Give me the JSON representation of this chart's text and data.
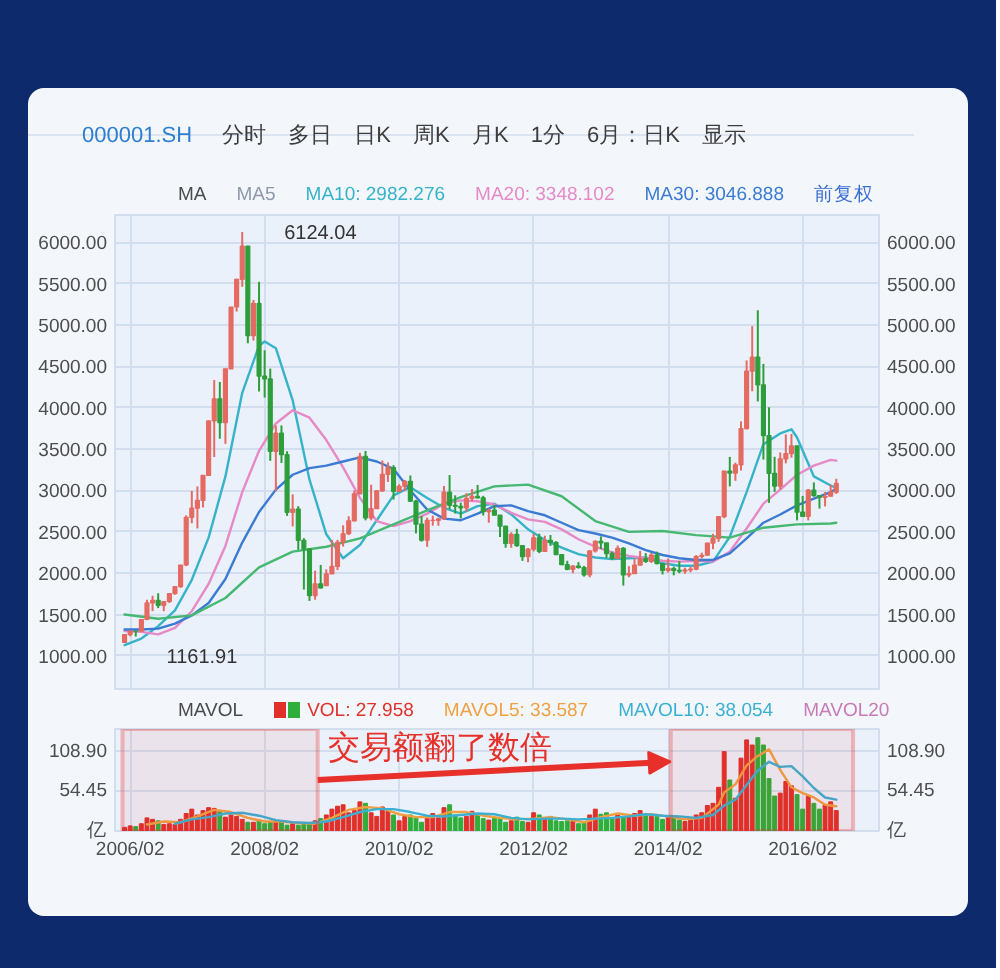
{
  "chart_data": [
    {
      "type": "candlestick",
      "title": "000001.SH",
      "subtitle": "分时 多日 日K 周K 月K 1分 6月：日K 显示",
      "x": [
        "2006-01",
        "2006-02",
        "2006-03",
        "2006-04",
        "2006-05",
        "2006-06",
        "2006-07",
        "2006-08",
        "2006-09",
        "2006-10",
        "2006-11",
        "2006-12",
        "2007-01",
        "2007-02",
        "2007-03",
        "2007-04",
        "2007-05",
        "2007-06",
        "2007-07",
        "2007-08",
        "2007-09",
        "2007-10",
        "2007-11",
        "2007-12",
        "2008-01",
        "2008-02",
        "2008-03",
        "2008-04",
        "2008-05",
        "2008-06",
        "2008-07",
        "2008-08",
        "2008-09",
        "2008-10",
        "2008-11",
        "2008-12",
        "2009-01",
        "2009-02",
        "2009-03",
        "2009-04",
        "2009-05",
        "2009-06",
        "2009-07",
        "2009-08",
        "2009-09",
        "2009-10",
        "2009-11",
        "2009-12",
        "2010-01",
        "2010-02",
        "2010-03",
        "2010-04",
        "2010-05",
        "2010-06",
        "2010-07",
        "2010-08",
        "2010-09",
        "2010-10",
        "2010-11",
        "2010-12",
        "2011-01",
        "2011-02",
        "2011-03",
        "2011-04",
        "2011-05",
        "2011-06",
        "2011-07",
        "2011-08",
        "2011-09",
        "2011-10",
        "2011-11",
        "2011-12",
        "2012-01",
        "2012-02",
        "2012-03",
        "2012-04",
        "2012-05",
        "2012-06",
        "2012-07",
        "2012-08",
        "2012-09",
        "2012-10",
        "2012-11",
        "2012-12",
        "2013-01",
        "2013-02",
        "2013-03",
        "2013-04",
        "2013-05",
        "2013-06",
        "2013-07",
        "2013-08",
        "2013-09",
        "2013-10",
        "2013-11",
        "2013-12",
        "2014-01",
        "2014-02",
        "2014-03",
        "2014-04",
        "2014-05",
        "2014-06",
        "2014-07",
        "2014-08",
        "2014-09",
        "2014-10",
        "2014-11",
        "2014-12",
        "2015-01",
        "2015-02",
        "2015-03",
        "2015-04",
        "2015-05",
        "2015-06",
        "2015-07",
        "2015-08",
        "2015-09",
        "2015-10",
        "2015-11",
        "2015-12",
        "2016-01",
        "2016-02",
        "2016-03",
        "2016-04",
        "2016-05",
        "2016-06",
        "2016-07",
        "2016-08"
      ],
      "ohlc": [
        [
          1163,
          1263,
          1161.91,
          1258
        ],
        [
          1258,
          1306,
          1237,
          1299
        ],
        [
          1299,
          1302,
          1234,
          1298
        ],
        [
          1298,
          1445,
          1298,
          1440
        ],
        [
          1440,
          1679,
          1432,
          1641
        ],
        [
          1641,
          1727,
          1541,
          1672
        ],
        [
          1672,
          1757,
          1578,
          1612
        ],
        [
          1612,
          1658,
          1541,
          1658
        ],
        [
          1658,
          1756,
          1639,
          1752
        ],
        [
          1752,
          1841,
          1740,
          1837
        ],
        [
          1837,
          2100,
          1823,
          2099
        ],
        [
          2099,
          2699,
          2085,
          2675
        ],
        [
          2675,
          2995,
          2604,
          2786
        ],
        [
          2786,
          3049,
          2541,
          2881
        ],
        [
          2881,
          3185,
          2794,
          3183
        ],
        [
          3183,
          3842,
          3174,
          3841
        ],
        [
          3841,
          4335,
          3404,
          4109
        ],
        [
          4109,
          4311,
          3626,
          3820
        ],
        [
          3820,
          4472,
          3563,
          4471
        ],
        [
          4471,
          5218,
          4471,
          5218
        ],
        [
          5218,
          5559,
          5163,
          5552
        ],
        [
          5552,
          6124.04,
          5462,
          5954
        ],
        [
          5954,
          5955,
          4779,
          4871
        ],
        [
          4871,
          5303,
          4812,
          5261
        ],
        [
          5261,
          5522,
          4196,
          4383
        ],
        [
          4383,
          4695,
          4123,
          4348
        ],
        [
          4348,
          4473,
          3358,
          3473
        ],
        [
          3473,
          3786,
          2990,
          3693
        ],
        [
          3693,
          3786,
          3333,
          3433
        ],
        [
          3433,
          3474,
          2693,
          2736
        ],
        [
          2736,
          2953,
          2566,
          2775
        ],
        [
          2775,
          2810,
          2284,
          2397
        ],
        [
          2397,
          2423,
          1802,
          2293
        ],
        [
          2293,
          2298,
          1665,
          1729
        ],
        [
          1729,
          2031,
          1679,
          1871
        ],
        [
          1871,
          2100,
          1814,
          1821
        ],
        [
          1849,
          2046,
          1844,
          1991
        ],
        [
          1991,
          2402,
          1991,
          2082
        ],
        [
          2082,
          2403,
          2037,
          2373
        ],
        [
          2373,
          2579,
          2322,
          2477
        ],
        [
          2477,
          2688,
          2461,
          2633
        ],
        [
          2633,
          2999,
          2627,
          2959
        ],
        [
          2959,
          3455,
          2959,
          3412
        ],
        [
          3412,
          3478,
          2639,
          2667
        ],
        [
          2667,
          3069,
          2639,
          2779
        ],
        [
          2779,
          3005,
          2779,
          2996
        ],
        [
          2996,
          3361,
          2983,
          3195
        ],
        [
          3195,
          3339,
          3104,
          3277
        ],
        [
          3277,
          3306,
          2890,
          2989
        ],
        [
          2989,
          3075,
          2983,
          3051
        ],
        [
          3051,
          3127,
          2994,
          3110
        ],
        [
          3110,
          3181,
          2861,
          2871
        ],
        [
          2871,
          2887,
          2481,
          2592
        ],
        [
          2592,
          2691,
          2382,
          2398
        ],
        [
          2398,
          2672,
          2319,
          2638
        ],
        [
          2638,
          2696,
          2574,
          2639
        ],
        [
          2639,
          2671,
          2573,
          2656
        ],
        [
          2656,
          3055,
          2656,
          2979
        ],
        [
          2979,
          3186,
          2775,
          2820
        ],
        [
          2820,
          2941,
          2721,
          2808
        ],
        [
          2808,
          2853,
          2662,
          2790
        ],
        [
          2790,
          2967,
          2742,
          2905
        ],
        [
          2905,
          3017,
          2869,
          2928
        ],
        [
          2928,
          3067,
          2904,
          2911
        ],
        [
          2911,
          2935,
          2697,
          2743
        ],
        [
          2743,
          2782,
          2610,
          2762
        ],
        [
          2762,
          2826,
          2700,
          2701
        ],
        [
          2701,
          2701,
          2437,
          2568
        ],
        [
          2568,
          2568,
          2308,
          2359
        ],
        [
          2359,
          2494,
          2307,
          2468
        ],
        [
          2468,
          2536,
          2319,
          2333
        ],
        [
          2333,
          2341,
          2149,
          2199
        ],
        [
          2199,
          2302,
          2132,
          2292
        ],
        [
          2292,
          2479,
          2263,
          2428
        ],
        [
          2428,
          2478,
          2242,
          2263
        ],
        [
          2263,
          2453,
          2262,
          2397
        ],
        [
          2397,
          2461,
          2330,
          2373
        ],
        [
          2373,
          2386,
          2225,
          2225
        ],
        [
          2225,
          2232,
          2096,
          2103
        ],
        [
          2103,
          2150,
          2036,
          2047
        ],
        [
          2047,
          2097,
          1999,
          2086
        ],
        [
          2086,
          2134,
          2055,
          2069
        ],
        [
          2069,
          2088,
          1959,
          1980
        ],
        [
          1980,
          2276,
          1950,
          2269
        ],
        [
          2269,
          2398,
          2250,
          2385
        ],
        [
          2385,
          2445,
          2293,
          2366
        ],
        [
          2366,
          2366,
          2185,
          2237
        ],
        [
          2237,
          2261,
          2161,
          2178
        ],
        [
          2178,
          2335,
          2176,
          2301
        ],
        [
          2301,
          2315,
          1850,
          1979
        ],
        [
          1979,
          2084,
          1951,
          1994
        ],
        [
          1994,
          2176,
          1993,
          2098
        ],
        [
          2098,
          2270,
          2098,
          2175
        ],
        [
          2175,
          2243,
          2125,
          2141
        ],
        [
          2141,
          2244,
          2124,
          2220
        ],
        [
          2220,
          2260,
          2108,
          2116
        ],
        [
          2116,
          2117,
          1985,
          2033
        ],
        [
          2033,
          2177,
          2008,
          2056
        ],
        [
          2056,
          2080,
          1974,
          2033
        ],
        [
          2033,
          2147,
          1999,
          2026
        ],
        [
          2026,
          2067,
          1992,
          2039
        ],
        [
          2039,
          2079,
          2010,
          2048
        ],
        [
          2048,
          2219,
          2035,
          2202
        ],
        [
          2202,
          2248,
          2177,
          2217
        ],
        [
          2217,
          2369,
          2211,
          2364
        ],
        [
          2364,
          2476,
          2290,
          2420
        ],
        [
          2420,
          2686,
          2379,
          2683
        ],
        [
          2683,
          3239,
          2665,
          3235
        ],
        [
          3235,
          3406,
          3049,
          3210
        ],
        [
          3210,
          3336,
          3117,
          3310
        ],
        [
          3310,
          3835,
          3242,
          3748
        ],
        [
          3748,
          4572,
          3738,
          4442
        ],
        [
          4442,
          4986,
          4199,
          4612
        ],
        [
          4612,
          5178,
          4076,
          4277
        ],
        [
          4277,
          4530,
          3373,
          3664
        ],
        [
          3664,
          4006,
          2850,
          3206
        ],
        [
          3206,
          3407,
          2983,
          3053
        ],
        [
          3053,
          3459,
          3010,
          3383
        ],
        [
          3383,
          3678,
          3328,
          3445
        ],
        [
          3445,
          3684,
          3396,
          3539
        ],
        [
          3539,
          3539,
          2638,
          2738
        ],
        [
          2738,
          2934,
          2683,
          2688
        ],
        [
          2688,
          3018,
          2638,
          3004
        ],
        [
          3004,
          3097,
          2925,
          2938
        ],
        [
          2938,
          2945,
          2781,
          2917
        ],
        [
          2917,
          2981,
          2807,
          2930
        ],
        [
          2930,
          3070,
          2929,
          2979
        ],
        [
          2979,
          3141,
          2958,
          3085
        ]
      ],
      "colors": [
        "#e46a62",
        "#e46a62",
        "#2d9e3c",
        "#e46a62",
        "#e46a62",
        "#e46a62",
        "#2d9e3c",
        "#e46a62",
        "#e46a62",
        "#e46a62",
        "#e46a62",
        "#e46a62",
        "#e46a62",
        "#e46a62",
        "#e46a62",
        "#e46a62",
        "#e46a62",
        "#2d9e3c",
        "#e46a62",
        "#e46a62",
        "#e46a62",
        "#e46a62",
        "#2d9e3c",
        "#e46a62",
        "#2d9e3c",
        "#2d9e3c",
        "#2d9e3c",
        "#e46a62",
        "#2d9e3c",
        "#2d9e3c",
        "#e46a62",
        "#2d9e3c",
        "#2d9e3c",
        "#2d9e3c",
        "#e46a62",
        "#2d9e3c",
        "#e46a62",
        "#e46a62",
        "#e46a62",
        "#e46a62",
        "#e46a62",
        "#e46a62",
        "#e46a62",
        "#2d9e3c",
        "#e46a62",
        "#e46a62",
        "#e46a62",
        "#e46a62",
        "#2d9e3c",
        "#e46a62",
        "#e46a62",
        "#2d9e3c",
        "#2d9e3c",
        "#2d9e3c",
        "#e46a62",
        "#e46a62",
        "#e46a62",
        "#e46a62",
        "#2d9e3c",
        "#2d9e3c",
        "#2d9e3c",
        "#e46a62",
        "#e46a62",
        "#2d9e3c",
        "#2d9e3c",
        "#e46a62",
        "#2d9e3c",
        "#2d9e3c",
        "#2d9e3c",
        "#e46a62",
        "#2d9e3c",
        "#2d9e3c",
        "#e46a62",
        "#e46a62",
        "#2d9e3c",
        "#e46a62",
        "#2d9e3c",
        "#2d9e3c",
        "#2d9e3c",
        "#2d9e3c",
        "#e46a62",
        "#2d9e3c",
        "#2d9e3c",
        "#e46a62",
        "#e46a62",
        "#2d9e3c",
        "#2d9e3c",
        "#2d9e3c",
        "#e46a62",
        "#2d9e3c",
        "#e46a62",
        "#e46a62",
        "#e46a62",
        "#2d9e3c",
        "#e46a62",
        "#2d9e3c",
        "#2d9e3c",
        "#e46a62",
        "#2d9e3c",
        "#2d9e3c",
        "#e46a62",
        "#e46a62",
        "#e46a62",
        "#e46a62",
        "#e46a62",
        "#e46a62",
        "#e46a62",
        "#e46a62",
        "#2d9e3c",
        "#e46a62",
        "#e46a62",
        "#e46a62",
        "#e46a62",
        "#2d9e3c",
        "#2d9e3c",
        "#2d9e3c",
        "#2d9e3c",
        "#e46a62",
        "#e46a62",
        "#e46a62",
        "#2d9e3c",
        "#2d9e3c",
        "#e46a62",
        "#2d9e3c",
        "#2d9e3c",
        "#e46a62",
        "#e46a62",
        "#e46a62"
      ],
      "series": [
        {
          "type": "line",
          "name": "MA10: 2982.276",
          "color": "#36b3c8",
          "x": [
            "2006-01",
            "2006-04",
            "2006-07",
            "2006-10",
            "2007-01",
            "2007-04",
            "2007-07",
            "2007-10",
            "2008-01",
            "2008-02",
            "2008-04",
            "2008-07",
            "2008-10",
            "2009-01",
            "2009-04",
            "2009-07",
            "2009-10",
            "2010-01",
            "2010-04",
            "2010-07",
            "2010-10",
            "2011-01",
            "2011-04",
            "2011-07",
            "2011-10",
            "2012-01",
            "2012-04",
            "2012-07",
            "2012-10",
            "2013-01",
            "2013-04",
            "2013-07",
            "2013-10",
            "2014-01",
            "2014-04",
            "2014-07",
            "2014-10",
            "2015-01",
            "2015-04",
            "2015-07",
            "2015-10",
            "2015-12",
            "2016-01",
            "2016-04",
            "2016-07",
            "2016-08"
          ],
          "values": [
            1130,
            1210,
            1360,
            1550,
            1920,
            2430,
            3170,
            4180,
            4750,
            4800,
            4720,
            4090,
            3130,
            2470,
            2180,
            2340,
            2640,
            2940,
            3040,
            2910,
            2790,
            2720,
            2810,
            2840,
            2710,
            2530,
            2400,
            2310,
            2230,
            2190,
            2170,
            2180,
            2190,
            2120,
            2090,
            2090,
            2140,
            2440,
            2980,
            3560,
            3690,
            3740,
            3640,
            3170,
            3060,
            3030
          ]
        },
        {
          "type": "line",
          "name": "MA20: 3348.102",
          "color": "#e58ac6",
          "x": [
            "2006-01",
            "2006-04",
            "2006-07",
            "2006-10",
            "2007-01",
            "2007-04",
            "2007-07",
            "2007-10",
            "2008-01",
            "2008-04",
            "2008-07",
            "2008-10",
            "2009-01",
            "2009-04",
            "2009-07",
            "2009-10",
            "2010-01",
            "2010-04",
            "2010-07",
            "2010-10",
            "2011-01",
            "2011-04",
            "2011-07",
            "2011-10",
            "2012-01",
            "2012-04",
            "2012-07",
            "2012-10",
            "2013-01",
            "2013-04",
            "2013-07",
            "2013-10",
            "2014-01",
            "2014-04",
            "2014-07",
            "2014-10",
            "2015-01",
            "2015-04",
            "2015-07",
            "2015-10",
            "2016-01",
            "2016-04",
            "2016-07",
            "2016-08"
          ],
          "values": [
            1300,
            1290,
            1260,
            1340,
            1540,
            1870,
            2330,
            2980,
            3480,
            3810,
            3970,
            3880,
            3610,
            3280,
            2910,
            2630,
            2570,
            2630,
            2720,
            2840,
            2880,
            2870,
            2830,
            2730,
            2650,
            2620,
            2530,
            2410,
            2320,
            2250,
            2210,
            2180,
            2150,
            2140,
            2150,
            2140,
            2260,
            2540,
            2840,
            3010,
            3190,
            3300,
            3370,
            3360
          ]
        },
        {
          "type": "line",
          "name": "MA30: 3046.888",
          "color": "#3b7bd4",
          "x": [
            "2006-01",
            "2006-04",
            "2006-07",
            "2006-10",
            "2007-01",
            "2007-04",
            "2007-07",
            "2007-10",
            "2008-01",
            "2008-04",
            "2008-07",
            "2008-10",
            "2009-01",
            "2009-04",
            "2009-07",
            "2009-10",
            "2010-01",
            "2010-04",
            "2010-07",
            "2010-10",
            "2011-01",
            "2011-04",
            "2011-07",
            "2011-10",
            "2012-01",
            "2012-04",
            "2012-07",
            "2012-10",
            "2013-01",
            "2013-04",
            "2013-07",
            "2013-10",
            "2014-01",
            "2014-04",
            "2014-07",
            "2014-10",
            "2015-01",
            "2015-04",
            "2015-07",
            "2015-10",
            "2016-01",
            "2016-04",
            "2016-07",
            "2016-08"
          ],
          "values": [
            1320,
            1320,
            1330,
            1390,
            1490,
            1640,
            1930,
            2370,
            2740,
            3010,
            3190,
            3270,
            3300,
            3350,
            3400,
            3350,
            3260,
            3000,
            2770,
            2660,
            2640,
            2720,
            2810,
            2820,
            2750,
            2700,
            2610,
            2520,
            2480,
            2430,
            2360,
            2280,
            2220,
            2180,
            2160,
            2160,
            2240,
            2420,
            2610,
            2710,
            2820,
            2900,
            2980,
            3020
          ]
        },
        {
          "type": "line",
          "color": "#45b872",
          "x": [
            "2006-01",
            "2006-07",
            "2007-01",
            "2007-07",
            "2008-01",
            "2008-07",
            "2009-01",
            "2009-07",
            "2010-01",
            "2010-07",
            "2011-01",
            "2011-07",
            "2012-01",
            "2012-07",
            "2013-01",
            "2013-07",
            "2014-01",
            "2014-07",
            "2015-01",
            "2015-07",
            "2016-01",
            "2016-07",
            "2016-08"
          ],
          "values": [
            1500,
            1450,
            1490,
            1700,
            2070,
            2260,
            2320,
            2420,
            2590,
            2760,
            2920,
            3050,
            3070,
            2930,
            2630,
            2500,
            2510,
            2460,
            2430,
            2550,
            2590,
            2600,
            2610
          ]
        }
      ],
      "xlim": [
        "2005-11-10",
        "2017-03-20"
      ],
      "xticks": [
        {
          "value": "2006-02",
          "label": null
        },
        {
          "value": "2008-02",
          "label": null
        },
        {
          "value": "2010-02",
          "label": null
        },
        {
          "value": "2012-02",
          "label": null
        },
        {
          "value": "2014-02",
          "label": null
        },
        {
          "value": "2016-02",
          "label": null
        }
      ],
      "ylim": [
        600,
        6330
      ],
      "yticks": [
        {
          "value": 1000,
          "label": "1000.00"
        },
        {
          "value": 1500,
          "label": "1500.00"
        },
        {
          "value": 2000,
          "label": "2000.00"
        },
        {
          "value": 2500,
          "label": "2500.00"
        },
        {
          "value": 3000,
          "label": "3000.00"
        },
        {
          "value": 3500,
          "label": "3500.00"
        },
        {
          "value": 4000,
          "label": "4000.00"
        },
        {
          "value": 4500,
          "label": "4500.00"
        },
        {
          "value": 5000,
          "label": "5000.00"
        },
        {
          "value": 5500,
          "label": "5500.00"
        },
        {
          "value": 6000,
          "label": "6000.00"
        }
      ],
      "y2lim": [
        600,
        6330
      ],
      "y2ticks": [
        {
          "value": 1000,
          "label": "1000.00"
        },
        {
          "value": 1500,
          "label": "1500.00"
        },
        {
          "value": 2000,
          "label": "2000.00"
        },
        {
          "value": 2500,
          "label": "2500.00"
        },
        {
          "value": 3000,
          "label": "3000.00"
        },
        {
          "value": 3500,
          "label": "3500.00"
        },
        {
          "value": 4000,
          "label": "4000.00"
        },
        {
          "value": 4500,
          "label": "4500.00"
        },
        {
          "value": 5000,
          "label": "5000.00"
        },
        {
          "value": 5500,
          "label": "5500.00"
        },
        {
          "value": 6000,
          "label": "6000.00"
        }
      ],
      "tick_labels": "y",
      "grid": true,
      "legend": "top",
      "annotations": [
        "MA",
        "MA5",
        {
          "text": "6124.04",
          "x": "2007-10",
          "y": 6124.04
        },
        {
          "text": "1161.91",
          "x": "2006-01",
          "y": 1161.91
        },
        "前复权"
      ]
    },
    {
      "type": "bar",
      "x": [
        "2006-01",
        "2006-02",
        "2006-03",
        "2006-04",
        "2006-05",
        "2006-06",
        "2006-07",
        "2006-08",
        "2006-09",
        "2006-10",
        "2006-11",
        "2006-12",
        "2007-01",
        "2007-02",
        "2007-03",
        "2007-04",
        "2007-05",
        "2007-06",
        "2007-07",
        "2007-08",
        "2007-09",
        "2007-10",
        "2007-11",
        "2007-12",
        "2008-01",
        "2008-02",
        "2008-03",
        "2008-04",
        "2008-05",
        "2008-06",
        "2008-07",
        "2008-08",
        "2008-09",
        "2008-10",
        "2008-11",
        "2008-12",
        "2009-01",
        "2009-02",
        "2009-03",
        "2009-04",
        "2009-05",
        "2009-06",
        "2009-07",
        "2009-08",
        "2009-09",
        "2009-10",
        "2009-11",
        "2009-12",
        "2010-01",
        "2010-02",
        "2010-03",
        "2010-04",
        "2010-05",
        "2010-06",
        "2010-07",
        "2010-08",
        "2010-09",
        "2010-10",
        "2010-11",
        "2010-12",
        "2011-01",
        "2011-02",
        "2011-03",
        "2011-04",
        "2011-05",
        "2011-06",
        "2011-07",
        "2011-08",
        "2011-09",
        "2011-10",
        "2011-11",
        "2011-12",
        "2012-01",
        "2012-02",
        "2012-03",
        "2012-04",
        "2012-05",
        "2012-06",
        "2012-07",
        "2012-08",
        "2012-09",
        "2012-10",
        "2012-11",
        "2012-12",
        "2013-01",
        "2013-02",
        "2013-03",
        "2013-04",
        "2013-05",
        "2013-06",
        "2013-07",
        "2013-08",
        "2013-09",
        "2013-10",
        "2013-11",
        "2013-12",
        "2014-01",
        "2014-02",
        "2014-03",
        "2014-04",
        "2014-05",
        "2014-06",
        "2014-07",
        "2014-08",
        "2014-09",
        "2014-10",
        "2014-11",
        "2014-12",
        "2015-01",
        "2015-02",
        "2015-03",
        "2015-04",
        "2015-05",
        "2015-06",
        "2015-07",
        "2015-08",
        "2015-09",
        "2015-10",
        "2015-11",
        "2015-12",
        "2016-01",
        "2016-02",
        "2016-03",
        "2016-04",
        "2016-05",
        "2016-06",
        "2016-07",
        "2016-08"
      ],
      "series": [
        {
          "name": "VOL: 27.958",
          "color": "#e0302a",
          "values": [
            5,
            7,
            6,
            10,
            18,
            16,
            14,
            9,
            10,
            9,
            16,
            24,
            30,
            22,
            28,
            32,
            31,
            27,
            19,
            22,
            20,
            16,
            12,
            12,
            15,
            10,
            13,
            14,
            13,
            8,
            10,
            8,
            11,
            9,
            14,
            17,
            22,
            30,
            34,
            36,
            25,
            28,
            40,
            38,
            25,
            20,
            33,
            28,
            22,
            14,
            20,
            22,
            18,
            12,
            20,
            24,
            18,
            32,
            36,
            22,
            18,
            20,
            27,
            24,
            17,
            15,
            18,
            18,
            12,
            14,
            19,
            13,
            12,
            25,
            22,
            18,
            20,
            14,
            13,
            14,
            13,
            10,
            12,
            22,
            30,
            23,
            25,
            17,
            24,
            20,
            20,
            24,
            28,
            22,
            20,
            20,
            16,
            20,
            18,
            15,
            13,
            15,
            22,
            25,
            35,
            38,
            60,
            109,
            70,
            45,
            100,
            125,
            118,
            128,
            118,
            72,
            48,
            52,
            68,
            62,
            50,
            30,
            48,
            38,
            30,
            36,
            40,
            28
          ],
          "colors": [
            "#e0302a",
            "#e0302a",
            "#2fae3a",
            "#e0302a",
            "#e0302a",
            "#e0302a",
            "#2fae3a",
            "#e0302a",
            "#e0302a",
            "#e0302a",
            "#e0302a",
            "#e0302a",
            "#e0302a",
            "#e0302a",
            "#e0302a",
            "#e0302a",
            "#e0302a",
            "#2fae3a",
            "#e0302a",
            "#e0302a",
            "#e0302a",
            "#e0302a",
            "#2fae3a",
            "#e0302a",
            "#2fae3a",
            "#2fae3a",
            "#2fae3a",
            "#e0302a",
            "#2fae3a",
            "#2fae3a",
            "#e0302a",
            "#2fae3a",
            "#2fae3a",
            "#2fae3a",
            "#e0302a",
            "#2fae3a",
            "#e0302a",
            "#e0302a",
            "#e0302a",
            "#e0302a",
            "#e0302a",
            "#e0302a",
            "#e0302a",
            "#2fae3a",
            "#e0302a",
            "#e0302a",
            "#e0302a",
            "#e0302a",
            "#2fae3a",
            "#e0302a",
            "#e0302a",
            "#2fae3a",
            "#2fae3a",
            "#2fae3a",
            "#e0302a",
            "#e0302a",
            "#e0302a",
            "#e0302a",
            "#2fae3a",
            "#2fae3a",
            "#2fae3a",
            "#e0302a",
            "#e0302a",
            "#2fae3a",
            "#2fae3a",
            "#e0302a",
            "#2fae3a",
            "#2fae3a",
            "#2fae3a",
            "#e0302a",
            "#2fae3a",
            "#2fae3a",
            "#e0302a",
            "#e0302a",
            "#2fae3a",
            "#e0302a",
            "#2fae3a",
            "#2fae3a",
            "#2fae3a",
            "#2fae3a",
            "#e0302a",
            "#2fae3a",
            "#2fae3a",
            "#e0302a",
            "#e0302a",
            "#2fae3a",
            "#2fae3a",
            "#2fae3a",
            "#e0302a",
            "#2fae3a",
            "#e0302a",
            "#e0302a",
            "#e0302a",
            "#2fae3a",
            "#e0302a",
            "#2fae3a",
            "#2fae3a",
            "#e0302a",
            "#2fae3a",
            "#2fae3a",
            "#e0302a",
            "#e0302a",
            "#e0302a",
            "#e0302a",
            "#e0302a",
            "#e0302a",
            "#e0302a",
            "#e0302a",
            "#2fae3a",
            "#e0302a",
            "#e0302a",
            "#e0302a",
            "#e0302a",
            "#2fae3a",
            "#2fae3a",
            "#2fae3a",
            "#2fae3a",
            "#e0302a",
            "#e0302a",
            "#e0302a",
            "#2fae3a",
            "#2fae3a",
            "#e0302a",
            "#2fae3a",
            "#2fae3a",
            "#e0302a",
            "#e0302a",
            "#e0302a"
          ]
        },
        {
          "type": "line",
          "name": "MAVOL5: 33.587",
          "color": "#f0a040",
          "x": [
            "2006-05",
            "2006-08",
            "2006-11",
            "2007-02",
            "2007-05",
            "2007-08",
            "2007-11",
            "2008-02",
            "2008-05",
            "2008-08",
            "2008-11",
            "2009-02",
            "2009-05",
            "2009-08",
            "2009-11",
            "2010-02",
            "2010-05",
            "2010-08",
            "2010-11",
            "2011-02",
            "2011-05",
            "2011-08",
            "2011-11",
            "2012-02",
            "2012-05",
            "2012-08",
            "2012-11",
            "2013-02",
            "2013-05",
            "2013-08",
            "2013-11",
            "2014-02",
            "2014-05",
            "2014-08",
            "2014-11",
            "2014-12",
            "2015-02",
            "2015-04",
            "2015-06",
            "2015-08",
            "2015-10",
            "2015-12",
            "2016-02",
            "2016-04",
            "2016-06",
            "2016-08"
          ],
          "values": [
            9,
            13,
            12,
            20,
            29,
            26,
            18,
            13,
            13,
            11,
            10,
            18,
            29,
            33,
            31,
            23,
            19,
            19,
            26,
            26,
            21,
            18,
            16,
            17,
            19,
            16,
            12,
            19,
            24,
            21,
            23,
            20,
            16,
            18,
            36,
            53,
            64,
            90,
            103,
            112,
            84,
            60,
            52,
            46,
            36,
            34
          ]
        },
        {
          "type": "line",
          "name": "MAVOL10: 38.054",
          "color": "#3cb0d2",
          "x": [
            "2006-10",
            "2007-01",
            "2007-04",
            "2007-07",
            "2007-10",
            "2008-01",
            "2008-04",
            "2008-07",
            "2008-10",
            "2009-01",
            "2009-04",
            "2009-07",
            "2009-10",
            "2010-01",
            "2010-04",
            "2010-07",
            "2010-10",
            "2011-01",
            "2011-04",
            "2011-07",
            "2011-10",
            "2012-01",
            "2012-04",
            "2012-07",
            "2012-10",
            "2013-01",
            "2013-04",
            "2013-07",
            "2013-10",
            "2014-01",
            "2014-04",
            "2014-07",
            "2014-10",
            "2014-12",
            "2015-02",
            "2015-04",
            "2015-06",
            "2015-08",
            "2015-10",
            "2015-12",
            "2016-02",
            "2016-04",
            "2016-06",
            "2016-08"
          ],
          "values": [
            10,
            16,
            19,
            24,
            25,
            21,
            15,
            12,
            11,
            13,
            19,
            26,
            30,
            30,
            26,
            21,
            20,
            22,
            24,
            23,
            18,
            16,
            17,
            17,
            16,
            17,
            18,
            20,
            23,
            21,
            20,
            18,
            22,
            35,
            43,
            63,
            83,
            95,
            88,
            89,
            75,
            59,
            46,
            43
          ]
        }
      ],
      "xlim": [
        "2005-11-10",
        "2017-03-20"
      ],
      "xticks": [
        {
          "value": "2006-02",
          "label": "2006/02"
        },
        {
          "value": "2008-02",
          "label": "2008/02"
        },
        {
          "value": "2010-02",
          "label": "2010/02"
        },
        {
          "value": "2012-02",
          "label": "2012/02"
        },
        {
          "value": "2014-02",
          "label": "2014/02"
        },
        {
          "value": "2016-02",
          "label": "2016/02"
        }
      ],
      "ylim": [
        0,
        140
      ],
      "yticks": [
        {
          "value": 0,
          "label": "亿"
        },
        {
          "value": 54.45,
          "label": "54.45"
        },
        {
          "value": 108.9,
          "label": "108.90"
        }
      ],
      "y2lim": [
        0,
        140
      ],
      "y2ticks": [
        {
          "value": 0,
          "label": "亿"
        },
        {
          "value": 54.45,
          "label": "54.45"
        },
        {
          "value": 108.9,
          "label": "108.90"
        }
      ],
      "grid": true,
      "legend": "top",
      "bands": [
        {
          "axis": "x",
          "from": "2005-12-20",
          "to": "2008-11-15",
          "color": "#e8302a"
        },
        {
          "axis": "x",
          "from": "2014-02-15",
          "to": "2016-11-01",
          "color": "#e8302a",
          "label": "交易额翻了数倍"
        }
      ],
      "annotations": [
        "MAVOL",
        "MAVOL20"
      ]
    }
  ]
}
